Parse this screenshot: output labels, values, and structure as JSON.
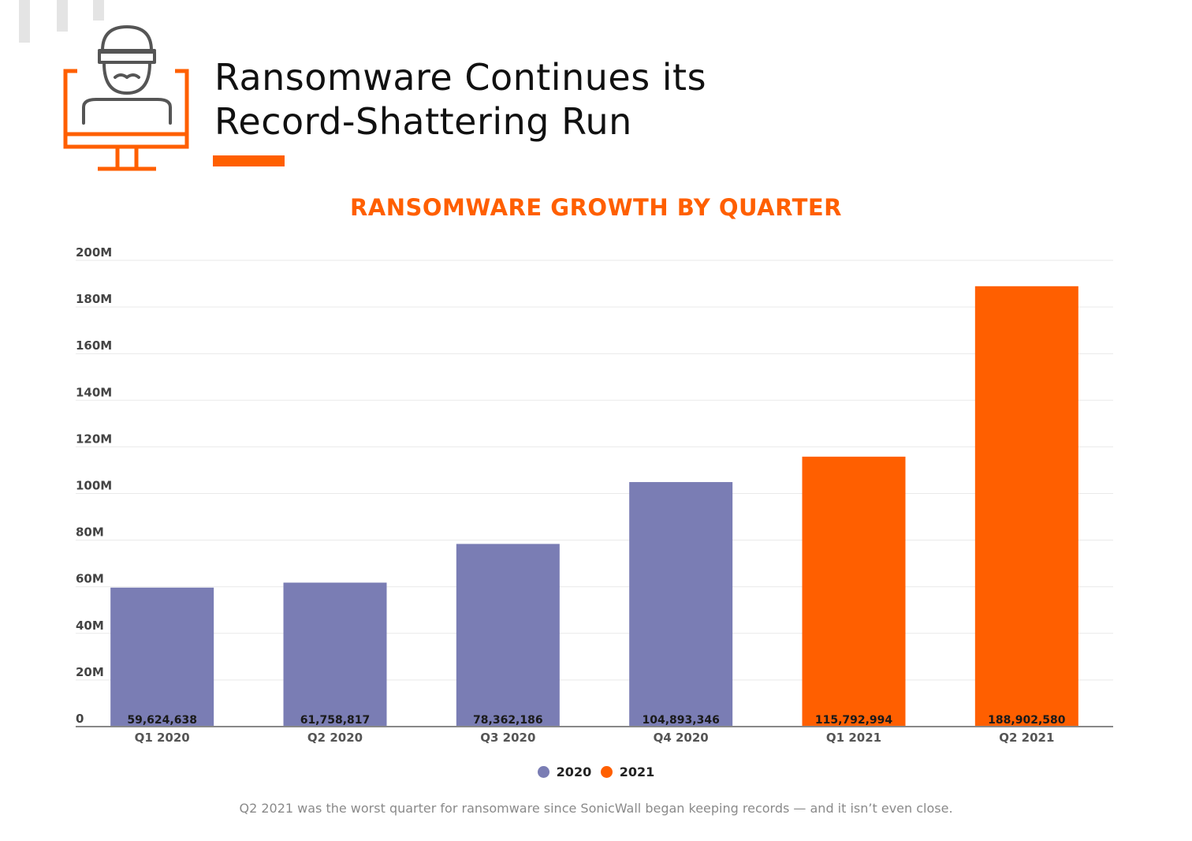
{
  "page": {
    "headline": [
      "Ransomware Continues its",
      "Record-Shattering Run"
    ],
    "header_icon": "hacker-monitor-icon",
    "caption": "Q2 2021 was the worst quarter for ransomware since SonicWall began keeping records — and it isn’t even close."
  },
  "colors": {
    "accent": "#ff5f00",
    "series_2020": "#7a7db4",
    "series_2021": "#ff5f00"
  },
  "chart_data": {
    "type": "bar",
    "title": "RANSOMWARE GROWTH BY QUARTER",
    "xlabel": "",
    "ylabel": "",
    "categories": [
      "Q1 2020",
      "Q2 2020",
      "Q3 2020",
      "Q4 2020",
      "Q1 2021",
      "Q2 2021"
    ],
    "values": [
      59624638,
      61758817,
      78362186,
      104893346,
      115792994,
      188902580
    ],
    "value_labels": [
      "59,624,638",
      "61,758,817",
      "78,362,186",
      "104,893,346",
      "115,792,994",
      "188,902,580"
    ],
    "bar_series": [
      "2020",
      "2020",
      "2020",
      "2020",
      "2021",
      "2021"
    ],
    "series": [
      {
        "name": "2020",
        "color": "#7a7db4"
      },
      {
        "name": "2021",
        "color": "#ff5f00"
      }
    ],
    "ylim": [
      0,
      200000000
    ],
    "yticks": [
      0,
      20000000,
      40000000,
      60000000,
      80000000,
      100000000,
      120000000,
      140000000,
      160000000,
      180000000,
      200000000
    ],
    "ytick_labels": [
      "0",
      "20M",
      "40M",
      "60M",
      "80M",
      "100M",
      "120M",
      "140M",
      "160M",
      "180M",
      "200M"
    ],
    "grid": true,
    "legend_position": "bottom-center"
  }
}
